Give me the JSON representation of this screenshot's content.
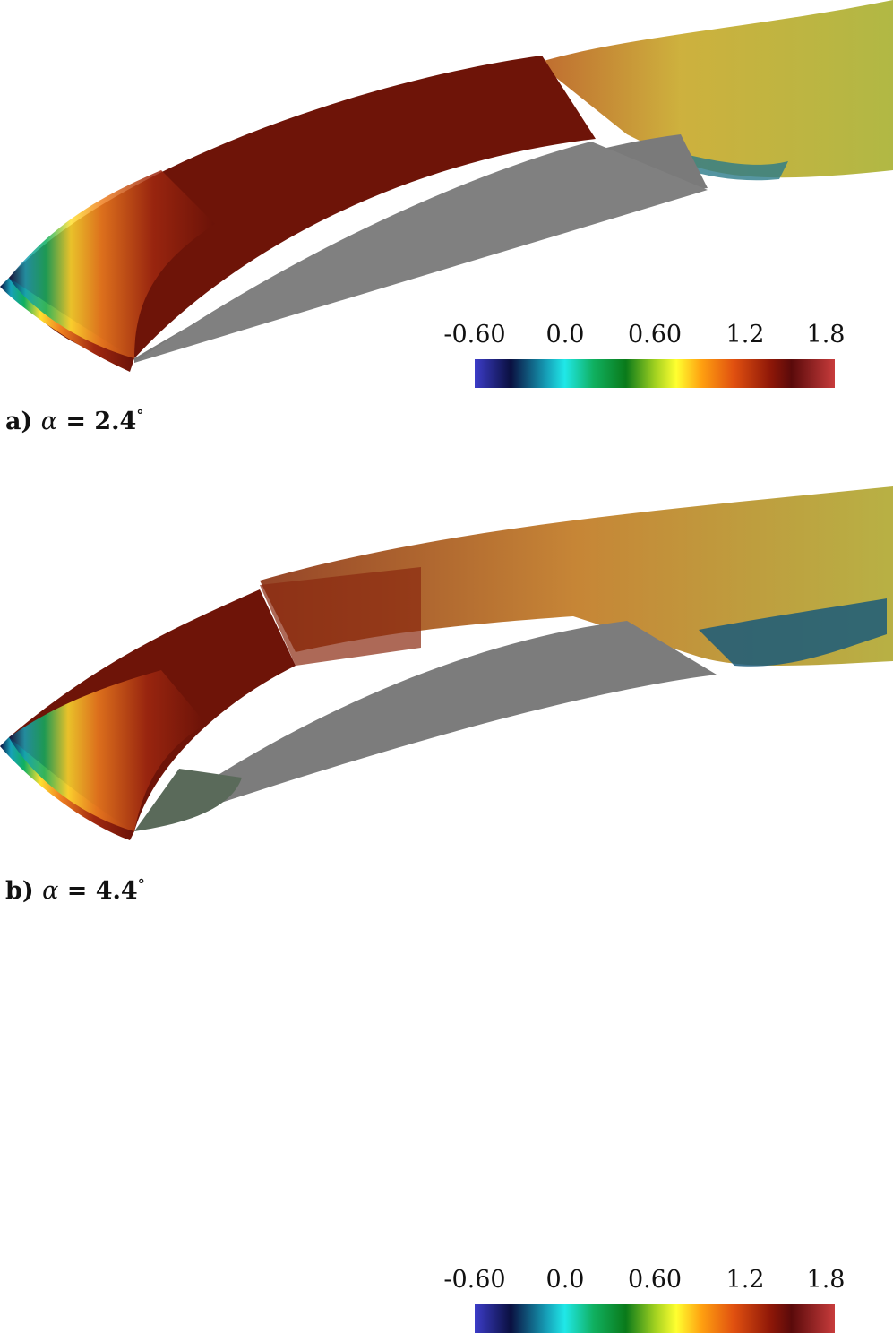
{
  "colorbar": {
    "ticks": [
      "-0.60",
      "0.0",
      "0.60",
      "1.2",
      "1.8"
    ],
    "stops": [
      "#3c3cc8",
      "#0a1040",
      "#16a0b8",
      "#20e8e8",
      "#10b060",
      "#0a7a1a",
      "#a0d020",
      "#ffff30",
      "#ffa010",
      "#e05010",
      "#901808",
      "#5a0a0a",
      "#c83c3c"
    ]
  },
  "panels": [
    {
      "letter": "a)",
      "symbol": "α",
      "equals": "=",
      "value": "2.4",
      "degree": "°"
    },
    {
      "letter": "b)",
      "symbol": "α",
      "equals": "=",
      "value": "4.4",
      "degree": "°"
    }
  ]
}
